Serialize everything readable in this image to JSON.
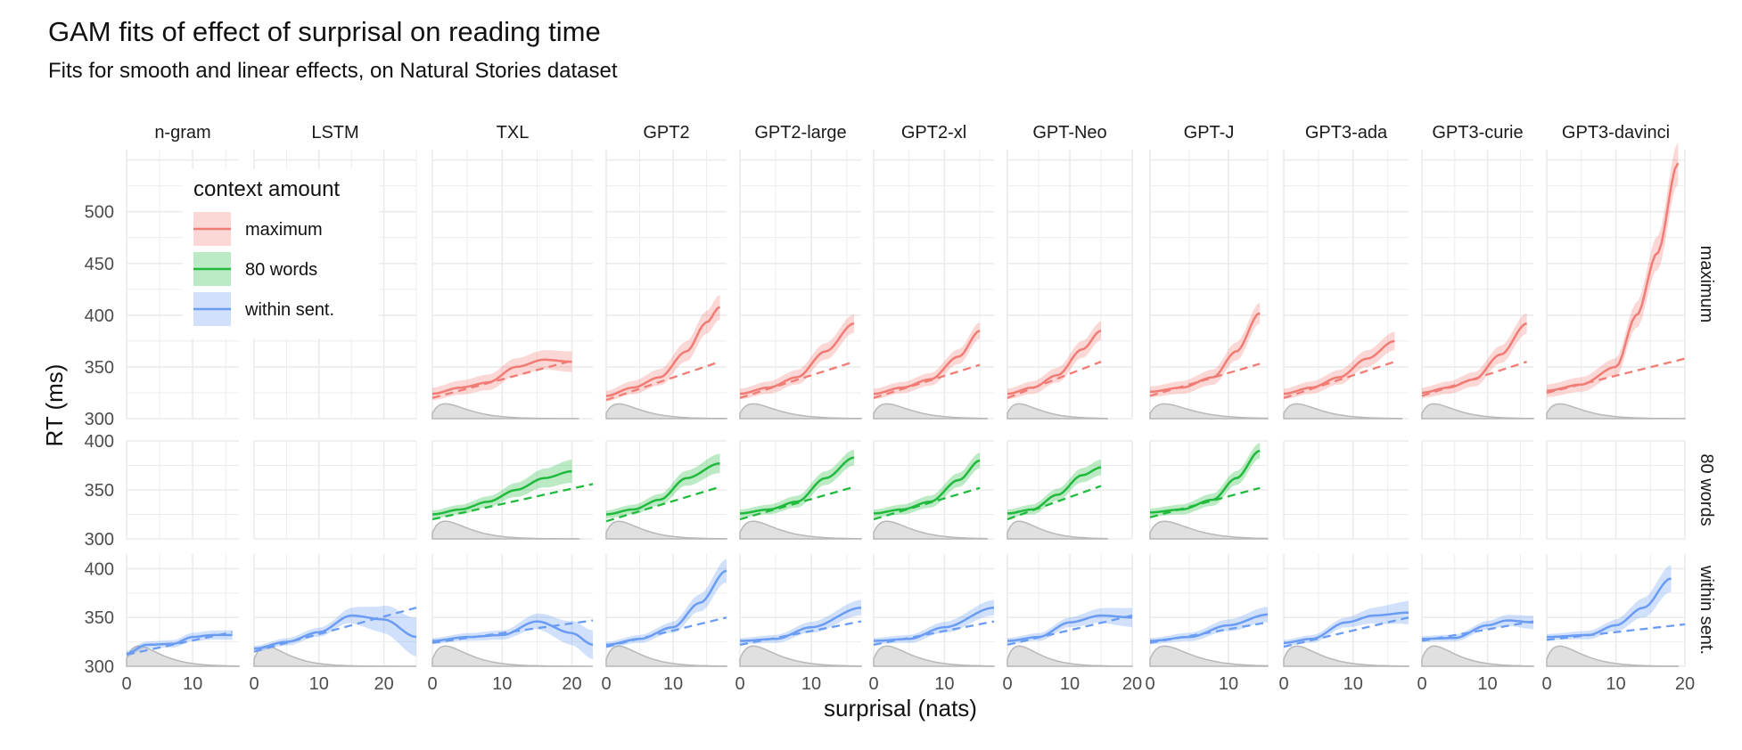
{
  "title": "GAM fits of effect of surprisal on reading time",
  "subtitle": "Fits for smooth and linear effects, on Natural Stories dataset",
  "colors": {
    "maximum": "#f17c75",
    "80 words": "#20ba3d",
    "within sent.": "#6a9cf3",
    "density": "#b8b8b8",
    "grid": "#ebebeb"
  },
  "chart_data": {
    "type": "line",
    "xlabel": "surprisal (nats)",
    "ylabel": "RT (ms)",
    "legend": {
      "title": "context amount",
      "placement": "top-left",
      "entries": [
        "maximum",
        "80 words",
        "within sent."
      ]
    },
    "columns": [
      "n-gram",
      "LSTM",
      "TXL",
      "GPT2",
      "GPT2-large",
      "GPT2-xl",
      "GPT-Neo",
      "GPT-J",
      "GPT3-ada",
      "GPT3-curie",
      "GPT3-davinci"
    ],
    "rows": [
      "maximum",
      "80 words",
      "within sent."
    ],
    "row_ylim": [
      [
        300,
        560
      ],
      [
        300,
        400
      ],
      [
        300,
        415
      ]
    ],
    "row_yticks": [
      [
        300,
        350,
        400,
        450,
        500
      ],
      [
        300,
        350,
        400
      ],
      [
        300,
        350,
        400
      ]
    ],
    "column_xlim": [
      [
        0,
        17
      ],
      [
        0,
        25
      ],
      [
        0,
        23
      ],
      [
        0,
        18
      ],
      [
        0,
        17
      ],
      [
        0,
        17
      ],
      [
        0,
        20
      ],
      [
        0,
        15
      ],
      [
        0,
        18
      ],
      [
        0,
        17
      ],
      [
        0,
        20
      ]
    ],
    "column_xticks": [
      [
        0,
        10
      ],
      [
        0,
        10,
        20
      ],
      [
        0,
        10,
        20
      ],
      [
        0,
        10
      ],
      [
        0,
        10
      ],
      [
        0,
        10
      ],
      [
        0,
        10,
        20
      ],
      [
        0,
        10
      ],
      [
        0,
        10
      ],
      [
        0,
        10
      ],
      [
        0,
        10,
        20
      ]
    ],
    "series_style": {
      "smooth": "solid line with 95% ribbon",
      "linear": "dashed line",
      "density": "grey filled area (surprisal distribution)"
    },
    "panels": [
      {
        "column": "TXL",
        "row": "maximum",
        "smooth": {
          "x": [
            0,
            4,
            8,
            12,
            16,
            20
          ],
          "y": [
            324,
            330,
            335,
            350,
            357,
            355
          ]
        },
        "ribbon": [
          6,
          8,
          10
        ],
        "linear": {
          "x": [
            0,
            20
          ],
          "y": [
            320,
            356
          ]
        }
      },
      {
        "column": "GPT2",
        "row": "maximum",
        "smooth": {
          "x": [
            0,
            4,
            8,
            12,
            15,
            17
          ],
          "y": [
            322,
            330,
            340,
            365,
            393,
            408
          ]
        },
        "ribbon": [
          5,
          8,
          12
        ],
        "linear": {
          "x": [
            0,
            17
          ],
          "y": [
            318,
            355
          ]
        }
      },
      {
        "column": "GPT2-large",
        "row": "maximum",
        "smooth": {
          "x": [
            0,
            4,
            8,
            12,
            16
          ],
          "y": [
            324,
            330,
            340,
            365,
            392
          ]
        },
        "ribbon": [
          5,
          7,
          9
        ],
        "linear": {
          "x": [
            0,
            16
          ],
          "y": [
            320,
            355
          ]
        }
      },
      {
        "column": "GPT2-xl",
        "row": "maximum",
        "smooth": {
          "x": [
            0,
            4,
            8,
            12,
            15
          ],
          "y": [
            324,
            330,
            338,
            360,
            385
          ]
        },
        "ribbon": [
          5,
          6,
          8
        ],
        "linear": {
          "x": [
            0,
            15
          ],
          "y": [
            320,
            352
          ]
        }
      },
      {
        "column": "GPT-Neo",
        "row": "maximum",
        "smooth": {
          "x": [
            0,
            4,
            8,
            12,
            15
          ],
          "y": [
            324,
            330,
            342,
            367,
            385
          ]
        },
        "ribbon": [
          5,
          7,
          9
        ],
        "linear": {
          "x": [
            0,
            15
          ],
          "y": [
            320,
            355
          ]
        }
      },
      {
        "column": "GPT-J",
        "row": "maximum",
        "smooth": {
          "x": [
            0,
            4,
            8,
            11,
            14
          ],
          "y": [
            326,
            330,
            340,
            365,
            402
          ]
        },
        "ribbon": [
          5,
          7,
          10
        ],
        "linear": {
          "x": [
            0,
            14
          ],
          "y": [
            322,
            353
          ]
        }
      },
      {
        "column": "GPT3-ada",
        "row": "maximum",
        "smooth": {
          "x": [
            0,
            4,
            8,
            12,
            16
          ],
          "y": [
            324,
            330,
            340,
            358,
            375
          ]
        },
        "ribbon": [
          5,
          7,
          9
        ],
        "linear": {
          "x": [
            0,
            16
          ],
          "y": [
            320,
            355
          ]
        }
      },
      {
        "column": "GPT3-curie",
        "row": "maximum",
        "smooth": {
          "x": [
            0,
            4,
            8,
            12,
            16
          ],
          "y": [
            325,
            330,
            338,
            362,
            392
          ]
        },
        "ribbon": [
          5,
          7,
          10
        ],
        "linear": {
          "x": [
            0,
            16
          ],
          "y": [
            322,
            355
          ]
        }
      },
      {
        "column": "GPT3-davinci",
        "row": "maximum",
        "smooth": {
          "x": [
            0,
            5,
            10,
            13,
            16,
            19
          ],
          "y": [
            327,
            333,
            350,
            400,
            460,
            547
          ]
        },
        "ribbon": [
          6,
          8,
          20
        ],
        "linear": {
          "x": [
            0,
            20
          ],
          "y": [
            325,
            358
          ]
        }
      },
      {
        "column": "TXL",
        "row": "80 words",
        "smooth": {
          "x": [
            0,
            4,
            8,
            12,
            16,
            20
          ],
          "y": [
            325,
            330,
            338,
            350,
            362,
            369
          ]
        },
        "ribbon": [
          4,
          6,
          12
        ],
        "linear": {
          "x": [
            0,
            23
          ],
          "y": [
            320,
            356
          ]
        }
      },
      {
        "column": "GPT2",
        "row": "80 words",
        "smooth": {
          "x": [
            0,
            4,
            8,
            12,
            17
          ],
          "y": [
            325,
            330,
            340,
            362,
            377
          ]
        },
        "ribbon": [
          4,
          6,
          10
        ],
        "linear": {
          "x": [
            0,
            17
          ],
          "y": [
            318,
            353
          ]
        }
      },
      {
        "column": "GPT2-large",
        "row": "80 words",
        "smooth": {
          "x": [
            0,
            4,
            8,
            12,
            16
          ],
          "y": [
            326,
            330,
            338,
            362,
            383
          ]
        },
        "ribbon": [
          4,
          6,
          8
        ],
        "linear": {
          "x": [
            0,
            16
          ],
          "y": [
            320,
            353
          ]
        }
      },
      {
        "column": "GPT2-xl",
        "row": "80 words",
        "smooth": {
          "x": [
            0,
            4,
            8,
            12,
            15
          ],
          "y": [
            326,
            330,
            338,
            360,
            380
          ]
        },
        "ribbon": [
          4,
          6,
          8
        ],
        "linear": {
          "x": [
            0,
            15
          ],
          "y": [
            320,
            352
          ]
        }
      },
      {
        "column": "GPT-Neo",
        "row": "80 words",
        "smooth": {
          "x": [
            0,
            4,
            8,
            12,
            15
          ],
          "y": [
            326,
            330,
            345,
            365,
            373
          ]
        },
        "ribbon": [
          4,
          6,
          8
        ],
        "linear": {
          "x": [
            0,
            15
          ],
          "y": [
            320,
            354
          ]
        }
      },
      {
        "column": "GPT-J",
        "row": "80 words",
        "smooth": {
          "x": [
            0,
            4,
            8,
            11,
            14
          ],
          "y": [
            327,
            330,
            340,
            362,
            390
          ]
        },
        "ribbon": [
          4,
          6,
          8
        ],
        "linear": {
          "x": [
            0,
            14
          ],
          "y": [
            322,
            352
          ]
        }
      },
      {
        "column": "n-gram",
        "row": "within sent.",
        "smooth": {
          "x": [
            0,
            3,
            7,
            10,
            13,
            16
          ],
          "y": [
            313,
            322,
            323,
            330,
            332,
            332
          ]
        },
        "ribbon": [
          3,
          4,
          5
        ],
        "linear": {
          "x": [
            0,
            16
          ],
          "y": [
            312,
            335
          ]
        }
      },
      {
        "column": "LSTM",
        "row": "within sent.",
        "smooth": {
          "x": [
            0,
            5,
            10,
            15,
            20,
            25
          ],
          "y": [
            318,
            325,
            335,
            352,
            348,
            330
          ]
        },
        "ribbon": [
          3,
          5,
          20
        ],
        "linear": {
          "x": [
            0,
            25
          ],
          "y": [
            315,
            360
          ]
        }
      },
      {
        "column": "TXL",
        "row": "within sent.",
        "smooth": {
          "x": [
            0,
            5,
            10,
            15,
            20,
            23
          ],
          "y": [
            326,
            330,
            332,
            346,
            334,
            322
          ]
        },
        "ribbon": [
          3,
          5,
          15
        ],
        "linear": {
          "x": [
            0,
            23
          ],
          "y": [
            324,
            347
          ]
        }
      },
      {
        "column": "GPT2",
        "row": "within sent.",
        "smooth": {
          "x": [
            0,
            5,
            10,
            14,
            18
          ],
          "y": [
            322,
            328,
            340,
            365,
            398
          ]
        },
        "ribbon": [
          3,
          5,
          12
        ],
        "linear": {
          "x": [
            0,
            18
          ],
          "y": [
            320,
            350
          ]
        }
      },
      {
        "column": "GPT2-large",
        "row": "within sent.",
        "smooth": {
          "x": [
            0,
            5,
            10,
            17
          ],
          "y": [
            326,
            328,
            340,
            360
          ]
        },
        "ribbon": [
          3,
          5,
          8
        ],
        "linear": {
          "x": [
            0,
            17
          ],
          "y": [
            322,
            346
          ]
        }
      },
      {
        "column": "GPT2-xl",
        "row": "within sent.",
        "smooth": {
          "x": [
            0,
            5,
            10,
            17
          ],
          "y": [
            326,
            328,
            340,
            360
          ]
        },
        "ribbon": [
          3,
          5,
          8
        ],
        "linear": {
          "x": [
            0,
            17
          ],
          "y": [
            322,
            346
          ]
        }
      },
      {
        "column": "GPT-Neo",
        "row": "within sent.",
        "smooth": {
          "x": [
            0,
            5,
            10,
            15,
            20
          ],
          "y": [
            326,
            330,
            345,
            352,
            350
          ]
        },
        "ribbon": [
          3,
          5,
          10
        ],
        "linear": {
          "x": [
            0,
            20
          ],
          "y": [
            322,
            352
          ]
        }
      },
      {
        "column": "GPT-J",
        "row": "within sent.",
        "smooth": {
          "x": [
            0,
            5,
            10,
            15
          ],
          "y": [
            326,
            330,
            342,
            353
          ]
        },
        "ribbon": [
          3,
          5,
          8
        ],
        "linear": {
          "x": [
            0,
            15
          ],
          "y": [
            324,
            345
          ]
        }
      },
      {
        "column": "GPT3-ada",
        "row": "within sent.",
        "smooth": {
          "x": [
            0,
            4,
            9,
            13,
            18
          ],
          "y": [
            324,
            328,
            345,
            352,
            355
          ]
        },
        "ribbon": [
          3,
          5,
          12
        ],
        "linear": {
          "x": [
            0,
            18
          ],
          "y": [
            320,
            350
          ]
        }
      },
      {
        "column": "GPT3-curie",
        "row": "within sent.",
        "smooth": {
          "x": [
            0,
            5,
            10,
            13,
            17
          ],
          "y": [
            328,
            329,
            342,
            347,
            345
          ]
        },
        "ribbon": [
          3,
          4,
          7
        ],
        "linear": {
          "x": [
            0,
            17
          ],
          "y": [
            326,
            346
          ]
        }
      },
      {
        "column": "GPT3-davinci",
        "row": "within sent.",
        "smooth": {
          "x": [
            0,
            6,
            10,
            14,
            18
          ],
          "y": [
            330,
            332,
            342,
            360,
            390
          ]
        },
        "ribbon": [
          3,
          5,
          14
        ],
        "linear": {
          "x": [
            0,
            20
          ],
          "y": [
            327,
            343
          ]
        }
      }
    ]
  }
}
